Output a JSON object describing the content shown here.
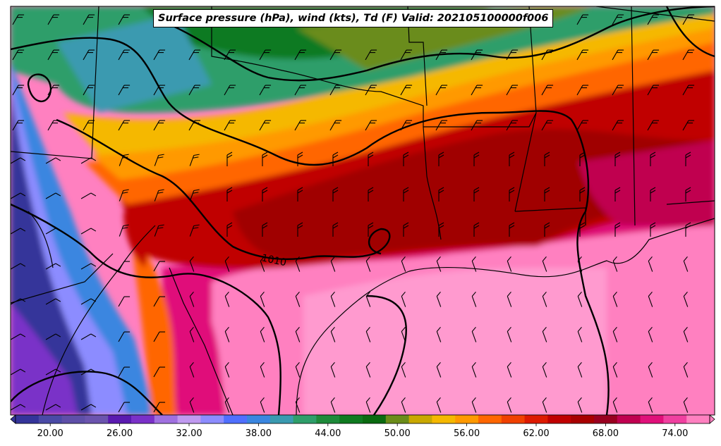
{
  "title": "Surface pressure (hPa), wind (kts), Td (F) Valid: 202105100000f006",
  "isobar_label": "1010",
  "colorbar": {
    "tick_labels": [
      "20.00",
      "26.00",
      "32.00",
      "38.00",
      "44.00",
      "50.00",
      "56.00",
      "62.00",
      "68.00",
      "74.00"
    ],
    "min": 17,
    "max": 77,
    "interval": 2,
    "colors": [
      "#34349a",
      "#4a4aa6",
      "#5e4fa8",
      "#6b54ae",
      "#5a1ab0",
      "#7a30c8",
      "#a070e0",
      "#c09af0",
      "#8c8cff",
      "#4f6fff",
      "#3a86e0",
      "#3a9ab0",
      "#2e9e6a",
      "#1e8a3a",
      "#0f7a20",
      "#0a6a10",
      "#6b8c1a",
      "#c9a800",
      "#f5b800",
      "#ff9900",
      "#ff6600",
      "#f04000",
      "#dd1a00",
      "#c00000",
      "#a80000",
      "#990020",
      "#c00050",
      "#e0107a",
      "#f040a0",
      "#ff80c0"
    ]
  },
  "colors": {
    "background": "#ffffff",
    "contour": "#000000",
    "barb": "#000000"
  }
}
